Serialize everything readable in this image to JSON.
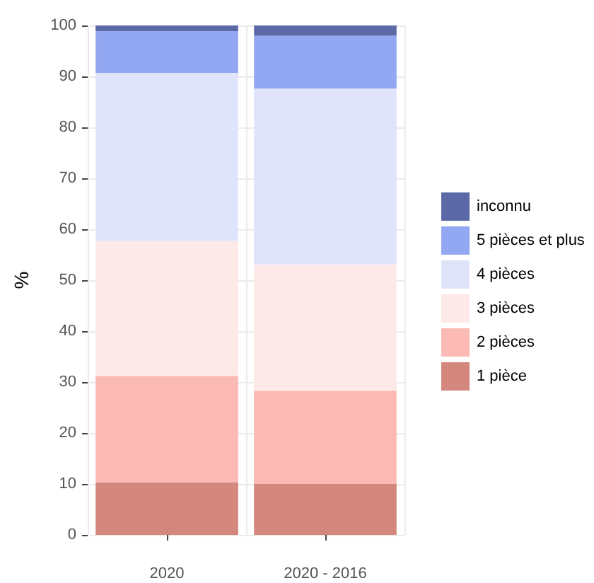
{
  "chart_data": {
    "type": "bar",
    "stacked": true,
    "ylabel": "%",
    "categories": [
      "2020",
      "2020 - 2016"
    ],
    "series": [
      {
        "name": "1 pièce",
        "color": "#d4877c",
        "values": [
          10.3,
          10.0
        ]
      },
      {
        "name": "2 pièces",
        "color": "#fbbab3",
        "values": [
          20.9,
          18.3
        ]
      },
      {
        "name": "3 pièces",
        "color": "#fdeae8",
        "values": [
          26.5,
          24.8
        ]
      },
      {
        "name": "4 pièces",
        "color": "#e0e4fb",
        "values": [
          33.0,
          34.5
        ]
      },
      {
        "name": "5 pièces et plus",
        "color": "#93a8f2",
        "values": [
          8.2,
          10.4
        ]
      },
      {
        "name": "inconnu",
        "color": "#5b69a7",
        "values": [
          1.1,
          2.0
        ]
      }
    ],
    "ylim": [
      0,
      100
    ],
    "yticks": [
      0,
      10,
      20,
      30,
      40,
      50,
      60,
      70,
      80,
      90,
      100
    ],
    "grid": true,
    "legend": "right"
  }
}
